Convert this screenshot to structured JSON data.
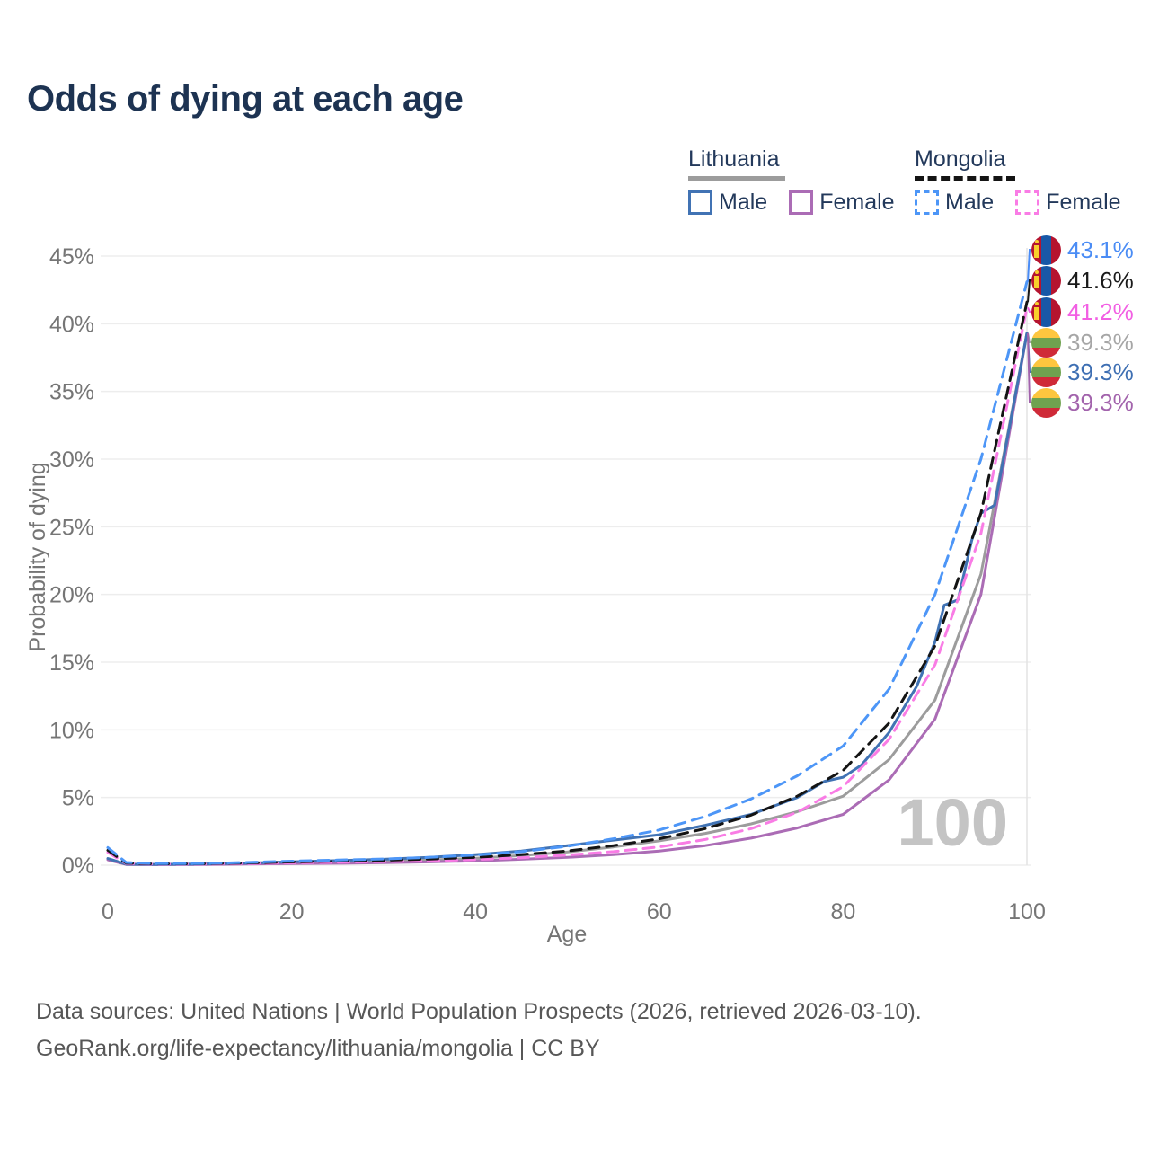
{
  "title": "Odds of dying at each age",
  "legend": {
    "lithuania": {
      "title": "Lithuania",
      "male": "Male",
      "female": "Female"
    },
    "mongolia": {
      "title": "Mongolia",
      "male": "Male",
      "female": "Female"
    }
  },
  "colors": {
    "title": "#1d3352",
    "axis_text": "#757575",
    "grid": "#ededed",
    "hover_line": "#e3e3e3",
    "watermark": "#c4c4c4",
    "lithuania_male": "#4173b4",
    "lithuania_female": "#ab6cb5",
    "lithuania_total": "#9c9c9c",
    "mongolia_male": "#4d96f7",
    "mongolia_female": "#f97ce5",
    "mongolia_total": "#141414"
  },
  "watermark": "100",
  "chart_data": {
    "type": "line",
    "title": "Odds of dying at each age",
    "xlabel": "Age",
    "ylabel": "Probability of dying",
    "x_ticks": [
      0,
      20,
      40,
      60,
      80,
      100
    ],
    "y_ticks": [
      "0%",
      "5%",
      "10%",
      "15%",
      "20%",
      "25%",
      "30%",
      "35%",
      "40%",
      "45%"
    ],
    "xlim": [
      0,
      100
    ],
    "ylim": [
      0,
      45
    ],
    "grid": "horizontal-only",
    "legend_position": "top-right",
    "hovered_age": 100,
    "series": [
      {
        "name": "Lithuania",
        "sex": "total",
        "style": "solid",
        "color": "#9c9c9c",
        "points": [
          [
            0,
            0.45
          ],
          [
            2,
            0.06
          ],
          [
            5,
            0.05
          ],
          [
            10,
            0.06
          ],
          [
            15,
            0.1
          ],
          [
            20,
            0.16
          ],
          [
            25,
            0.22
          ],
          [
            30,
            0.29
          ],
          [
            35,
            0.38
          ],
          [
            40,
            0.52
          ],
          [
            45,
            0.72
          ],
          [
            50,
            0.98
          ],
          [
            55,
            1.35
          ],
          [
            60,
            1.8
          ],
          [
            65,
            2.35
          ],
          [
            70,
            3.05
          ],
          [
            75,
            3.95
          ],
          [
            80,
            5.1
          ],
          [
            85,
            7.8
          ],
          [
            90,
            12.2
          ],
          [
            95,
            21.5
          ],
          [
            100,
            39.3
          ]
        ]
      },
      {
        "name": "Lithuania Female",
        "sex": "female",
        "style": "solid",
        "color": "#ab6cb5",
        "points": [
          [
            0,
            0.4
          ],
          [
            2,
            0.05
          ],
          [
            5,
            0.04
          ],
          [
            10,
            0.05
          ],
          [
            15,
            0.08
          ],
          [
            20,
            0.11
          ],
          [
            25,
            0.14
          ],
          [
            30,
            0.18
          ],
          [
            35,
            0.24
          ],
          [
            40,
            0.32
          ],
          [
            45,
            0.44
          ],
          [
            50,
            0.58
          ],
          [
            55,
            0.78
          ],
          [
            60,
            1.05
          ],
          [
            65,
            1.45
          ],
          [
            70,
            2.0
          ],
          [
            75,
            2.75
          ],
          [
            80,
            3.75
          ],
          [
            85,
            6.3
          ],
          [
            90,
            10.8
          ],
          [
            95,
            20.0
          ],
          [
            100,
            39.3
          ]
        ]
      },
      {
        "name": "Lithuania Male",
        "sex": "male",
        "style": "solid",
        "color": "#4173b4",
        "points": [
          [
            0,
            0.5
          ],
          [
            2,
            0.07
          ],
          [
            5,
            0.06
          ],
          [
            10,
            0.08
          ],
          [
            15,
            0.15
          ],
          [
            20,
            0.25
          ],
          [
            25,
            0.34
          ],
          [
            30,
            0.44
          ],
          [
            35,
            0.58
          ],
          [
            40,
            0.78
          ],
          [
            45,
            1.05
          ],
          [
            50,
            1.45
          ],
          [
            55,
            1.85
          ],
          [
            60,
            2.25
          ],
          [
            65,
            2.95
          ],
          [
            70,
            3.75
          ],
          [
            75,
            5.0
          ],
          [
            78,
            6.2
          ],
          [
            80,
            6.5
          ],
          [
            82,
            7.4
          ],
          [
            85,
            9.8
          ],
          [
            88,
            13.2
          ],
          [
            90,
            16.5
          ],
          [
            91,
            19.2
          ],
          [
            92.5,
            19.6
          ],
          [
            94,
            24.0
          ],
          [
            95,
            26.0
          ],
          [
            96.5,
            26.6
          ],
          [
            98,
            32.0
          ],
          [
            100,
            39.3
          ]
        ]
      },
      {
        "name": "Mongolia Female",
        "sex": "female",
        "style": "dashed",
        "color": "#f97ce5",
        "points": [
          [
            0,
            0.95
          ],
          [
            2,
            0.12
          ],
          [
            5,
            0.08
          ],
          [
            10,
            0.08
          ],
          [
            15,
            0.12
          ],
          [
            20,
            0.17
          ],
          [
            25,
            0.21
          ],
          [
            30,
            0.26
          ],
          [
            35,
            0.32
          ],
          [
            40,
            0.42
          ],
          [
            45,
            0.55
          ],
          [
            50,
            0.75
          ],
          [
            55,
            1.0
          ],
          [
            60,
            1.35
          ],
          [
            65,
            1.9
          ],
          [
            70,
            2.7
          ],
          [
            75,
            3.9
          ],
          [
            80,
            5.8
          ],
          [
            85,
            9.3
          ],
          [
            90,
            14.8
          ],
          [
            95,
            24.5
          ],
          [
            100,
            41.2
          ]
        ]
      },
      {
        "name": "Mongolia",
        "sex": "total",
        "style": "dashed",
        "color": "#141414",
        "points": [
          [
            0,
            1.1
          ],
          [
            2,
            0.15
          ],
          [
            5,
            0.1
          ],
          [
            10,
            0.1
          ],
          [
            15,
            0.16
          ],
          [
            20,
            0.24
          ],
          [
            25,
            0.3
          ],
          [
            30,
            0.36
          ],
          [
            35,
            0.45
          ],
          [
            40,
            0.58
          ],
          [
            45,
            0.78
          ],
          [
            50,
            1.05
          ],
          [
            55,
            1.45
          ],
          [
            60,
            1.95
          ],
          [
            65,
            2.7
          ],
          [
            70,
            3.7
          ],
          [
            75,
            5.1
          ],
          [
            80,
            7.0
          ],
          [
            85,
            10.5
          ],
          [
            90,
            16.2
          ],
          [
            95,
            26.0
          ],
          [
            100,
            41.6
          ]
        ]
      },
      {
        "name": "Mongolia Male",
        "sex": "male",
        "style": "dashed",
        "color": "#4d96f7",
        "points": [
          [
            0,
            1.3
          ],
          [
            2,
            0.2
          ],
          [
            5,
            0.12
          ],
          [
            10,
            0.12
          ],
          [
            15,
            0.2
          ],
          [
            20,
            0.3
          ],
          [
            25,
            0.38
          ],
          [
            30,
            0.46
          ],
          [
            35,
            0.58
          ],
          [
            40,
            0.75
          ],
          [
            45,
            1.0
          ],
          [
            50,
            1.4
          ],
          [
            55,
            1.95
          ],
          [
            60,
            2.6
          ],
          [
            65,
            3.6
          ],
          [
            70,
            4.9
          ],
          [
            75,
            6.6
          ],
          [
            80,
            8.8
          ],
          [
            85,
            13.0
          ],
          [
            90,
            20.0
          ],
          [
            95,
            30.0
          ],
          [
            100,
            43.1
          ]
        ]
      }
    ]
  },
  "end_labels": [
    {
      "value": "43.1%",
      "series": "Mongolia Male",
      "flag": "mongolia",
      "color": "#4a8cf5"
    },
    {
      "value": "41.6%",
      "series": "Mongolia",
      "flag": "mongolia",
      "color": "#1a1a1a"
    },
    {
      "value": "41.2%",
      "series": "Mongolia Female",
      "flag": "mongolia",
      "color": "#f25fe3"
    },
    {
      "value": "39.3%",
      "series": "Lithuania",
      "flag": "lithuania",
      "color": "#a6a6a6"
    },
    {
      "value": "39.3%",
      "series": "Lithuania Male",
      "flag": "lithuania",
      "color": "#3e6fb3"
    },
    {
      "value": "39.3%",
      "series": "Lithuania Female",
      "flag": "lithuania",
      "color": "#a263ac"
    }
  ],
  "footer": {
    "line1": "Data sources: United Nations | World Population Prospects (2026, retrieved 2026-03-10).",
    "line2": "GeoRank.org/life-expectancy/lithuania/mongolia | CC BY"
  }
}
